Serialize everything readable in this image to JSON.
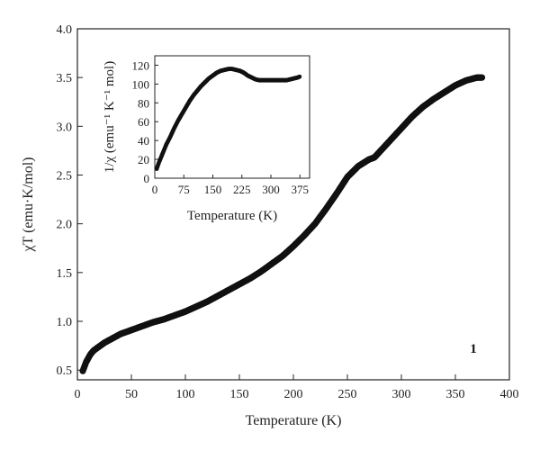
{
  "chart_data": [
    {
      "type": "scatter",
      "xlabel": "Temperature (K)",
      "ylabel": "χT (emu·K/mol)",
      "xlim": [
        0,
        400
      ],
      "ylim": [
        0.4,
        4.0
      ],
      "xticks": [
        "0",
        "50",
        "100",
        "150",
        "200",
        "250",
        "300",
        "350",
        "400"
      ],
      "yticks": [
        "0.5",
        "1.0",
        "1.5",
        "2.0",
        "2.5",
        "3.0",
        "3.5",
        "4.0"
      ],
      "annotation": "1",
      "marker_color": "#111111",
      "series": [
        {
          "x": [
            5,
            6,
            7,
            8,
            10,
            12,
            15,
            20,
            25,
            30,
            40,
            50,
            60,
            70,
            80,
            90,
            100,
            110,
            120,
            130,
            140,
            150,
            160,
            170,
            180,
            190,
            200,
            210,
            220,
            230,
            240,
            250,
            260,
            270,
            275,
            280,
            290,
            300,
            310,
            320,
            330,
            340,
            350,
            360,
            370,
            375
          ],
          "y": [
            0.49,
            0.52,
            0.55,
            0.58,
            0.62,
            0.66,
            0.7,
            0.74,
            0.78,
            0.81,
            0.87,
            0.91,
            0.95,
            0.99,
            1.02,
            1.06,
            1.1,
            1.15,
            1.2,
            1.26,
            1.32,
            1.38,
            1.44,
            1.51,
            1.59,
            1.67,
            1.77,
            1.88,
            2.0,
            2.15,
            2.31,
            2.48,
            2.59,
            2.66,
            2.68,
            2.74,
            2.86,
            2.98,
            3.1,
            3.2,
            3.28,
            3.35,
            3.42,
            3.47,
            3.5,
            3.5
          ]
        }
      ]
    },
    {
      "type": "scatter",
      "xlabel": "Temperature (K)",
      "ylabel": "1/χ (emu⁻¹ K⁻¹ mol)",
      "xlim": [
        0,
        400
      ],
      "ylim": [
        0,
        130
      ],
      "xticks": [
        "0",
        "75",
        "150",
        "225",
        "300",
        "375"
      ],
      "yticks": [
        "0",
        "20",
        "40",
        "60",
        "80",
        "100",
        "120"
      ],
      "marker_color": "#111111",
      "series": [
        {
          "x": [
            5,
            10,
            20,
            30,
            40,
            50,
            60,
            70,
            80,
            90,
            100,
            110,
            120,
            130,
            140,
            150,
            160,
            170,
            180,
            190,
            200,
            210,
            220,
            230,
            240,
            250,
            260,
            270,
            280,
            290,
            300,
            310,
            320,
            330,
            340,
            350,
            360,
            370,
            375
          ],
          "y": [
            10,
            16,
            26,
            36,
            44,
            53,
            61,
            68,
            75,
            82,
            88,
            93,
            98,
            102,
            106,
            109,
            112,
            114,
            115,
            116,
            116,
            115,
            114,
            112,
            109,
            107,
            105,
            104,
            104,
            104,
            104,
            104,
            104,
            104,
            104,
            105,
            106,
            107,
            108
          ]
        }
      ]
    }
  ]
}
